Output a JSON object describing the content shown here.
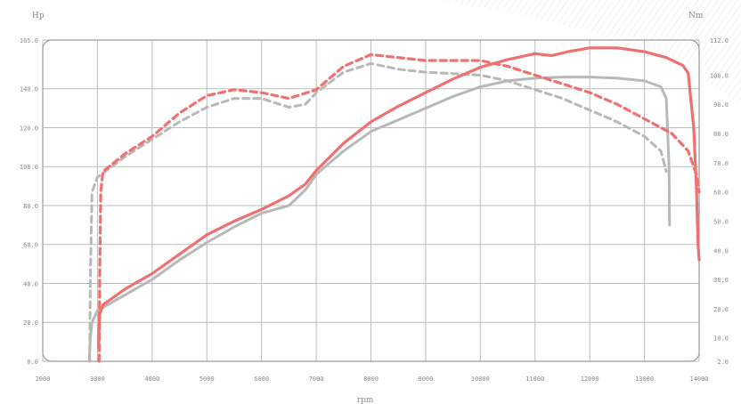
{
  "chart_data": {
    "type": "line",
    "title": "",
    "left_unit": "Hp",
    "right_unit": "Nm",
    "xlabel": "rpm",
    "xlim": [
      2000,
      14000
    ],
    "x_ticks": [
      "2000",
      "3000",
      "4000",
      "5000",
      "6000",
      "7000",
      "8000",
      "9000",
      "10000",
      "11000",
      "12000",
      "13000",
      "14000"
    ],
    "ylim_left": [
      0,
      165
    ],
    "y_left_ticks": [
      {
        "value": 0,
        "label": "0.0"
      },
      {
        "value": 20,
        "label": "20.0"
      },
      {
        "value": 40,
        "label": "40.0"
      },
      {
        "value": 60,
        "label": "60.0"
      },
      {
        "value": 80,
        "label": "80.0"
      },
      {
        "value": 100,
        "label": "100.0"
      },
      {
        "value": 120,
        "label": "120.0"
      },
      {
        "value": 140,
        "label": "140.0"
      },
      {
        "value": 165,
        "label": "165.0"
      }
    ],
    "ylim_right": [
      2,
      112
    ],
    "y_right_ticks": [
      {
        "value": 2,
        "label": "2.0"
      },
      {
        "value": 10,
        "label": "10.0"
      },
      {
        "value": 20,
        "label": "20.0"
      },
      {
        "value": 30,
        "label": "30.0"
      },
      {
        "value": 40,
        "label": "40.0"
      },
      {
        "value": 50,
        "label": "50.0"
      },
      {
        "value": 60,
        "label": "60.0"
      },
      {
        "value": 70,
        "label": "70.0"
      },
      {
        "value": 80,
        "label": "80.0"
      },
      {
        "value": 90,
        "label": "90.0"
      },
      {
        "value": 100,
        "label": "100.0"
      },
      {
        "value": 112,
        "label": "112.0"
      }
    ],
    "grid": true,
    "series": [
      {
        "kind": "power",
        "axis": "left",
        "color": "#b8b8b8",
        "style": "solid",
        "points": [
          [
            2850,
            0
          ],
          [
            2870,
            12
          ],
          [
            2900,
            20
          ],
          [
            3000,
            26
          ],
          [
            3500,
            34
          ],
          [
            4000,
            42
          ],
          [
            4500,
            52
          ],
          [
            5000,
            61
          ],
          [
            5500,
            69
          ],
          [
            6000,
            76
          ],
          [
            6500,
            80
          ],
          [
            6800,
            88
          ],
          [
            7000,
            96
          ],
          [
            7500,
            108
          ],
          [
            8000,
            118
          ],
          [
            8500,
            124
          ],
          [
            9000,
            130
          ],
          [
            9500,
            136
          ],
          [
            10000,
            141
          ],
          [
            10500,
            144
          ],
          [
            11000,
            145.5
          ],
          [
            11500,
            146
          ],
          [
            12000,
            146
          ],
          [
            12500,
            145.5
          ],
          [
            13000,
            144
          ],
          [
            13300,
            141
          ],
          [
            13400,
            135
          ],
          [
            13450,
            100
          ],
          [
            13460,
            70
          ]
        ]
      },
      {
        "kind": "power",
        "axis": "left",
        "color": "#f07070",
        "style": "solid",
        "points": [
          [
            3020,
            7
          ],
          [
            3025,
            15
          ],
          [
            3040,
            24
          ],
          [
            3100,
            29
          ],
          [
            3500,
            37
          ],
          [
            4000,
            45
          ],
          [
            4500,
            55
          ],
          [
            5000,
            65
          ],
          [
            5500,
            72
          ],
          [
            6000,
            78
          ],
          [
            6500,
            85
          ],
          [
            6800,
            91
          ],
          [
            7000,
            98
          ],
          [
            7500,
            112
          ],
          [
            8000,
            123
          ],
          [
            8500,
            131
          ],
          [
            9000,
            138
          ],
          [
            9500,
            145
          ],
          [
            10000,
            151
          ],
          [
            10500,
            155
          ],
          [
            11000,
            158
          ],
          [
            11300,
            157
          ],
          [
            11600,
            159
          ],
          [
            12000,
            161
          ],
          [
            12500,
            161
          ],
          [
            13000,
            159
          ],
          [
            13400,
            156
          ],
          [
            13700,
            152
          ],
          [
            13800,
            148
          ],
          [
            13900,
            120
          ],
          [
            13950,
            90
          ],
          [
            13980,
            60
          ],
          [
            14000,
            52
          ]
        ]
      },
      {
        "kind": "torque",
        "axis": "right",
        "color": "#b8b8b8",
        "style": "dashed",
        "points": [
          [
            2860,
            2
          ],
          [
            2870,
            30
          ],
          [
            2900,
            60
          ],
          [
            3000,
            65
          ],
          [
            3500,
            72
          ],
          [
            4000,
            78
          ],
          [
            4500,
            84
          ],
          [
            5000,
            89
          ],
          [
            5500,
            92
          ],
          [
            6000,
            92
          ],
          [
            6500,
            89
          ],
          [
            6800,
            90
          ],
          [
            7000,
            94
          ],
          [
            7500,
            101
          ],
          [
            8000,
            104
          ],
          [
            8500,
            102
          ],
          [
            9000,
            101
          ],
          [
            10000,
            100
          ],
          [
            10500,
            98
          ],
          [
            11000,
            95
          ],
          [
            11500,
            92
          ],
          [
            12000,
            88
          ],
          [
            12500,
            84
          ],
          [
            13000,
            79
          ],
          [
            13300,
            74
          ],
          [
            13400,
            67
          ]
        ]
      },
      {
        "kind": "torque",
        "axis": "right",
        "color": "#f07070",
        "style": "dashed",
        "points": [
          [
            3030,
            2
          ],
          [
            3040,
            30
          ],
          [
            3060,
            60
          ],
          [
            3100,
            67
          ],
          [
            3500,
            73
          ],
          [
            4000,
            79
          ],
          [
            4500,
            87
          ],
          [
            5000,
            93
          ],
          [
            5500,
            95
          ],
          [
            6000,
            94
          ],
          [
            6500,
            92
          ],
          [
            7000,
            95
          ],
          [
            7500,
            103
          ],
          [
            8000,
            107
          ],
          [
            8500,
            106
          ],
          [
            9000,
            105
          ],
          [
            10000,
            105
          ],
          [
            10500,
            103
          ],
          [
            11000,
            100
          ],
          [
            11500,
            97
          ],
          [
            12000,
            94
          ],
          [
            12500,
            90
          ],
          [
            13000,
            85
          ],
          [
            13500,
            80
          ],
          [
            13800,
            74
          ],
          [
            13950,
            66
          ],
          [
            14000,
            60
          ]
        ]
      }
    ]
  }
}
